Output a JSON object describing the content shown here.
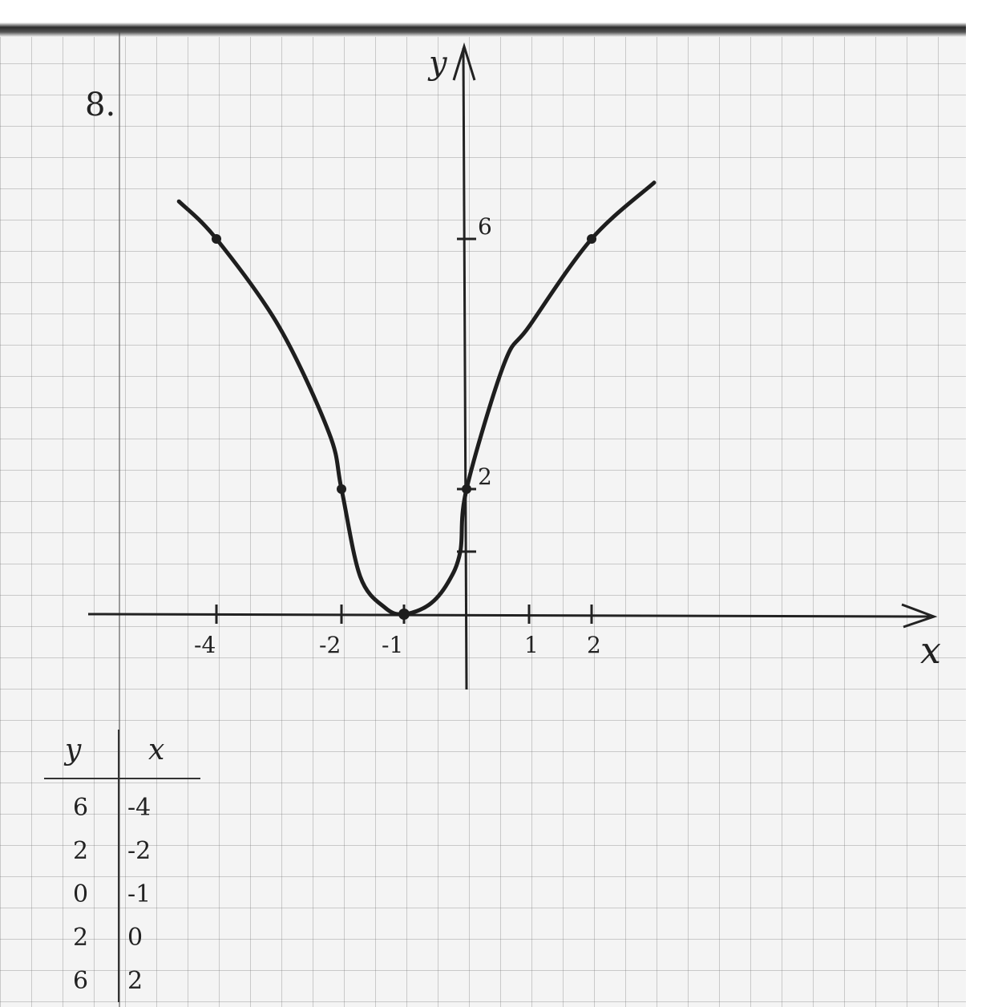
{
  "problem_number": "8.",
  "axis_labels": {
    "x": "x",
    "y": "y"
  },
  "value_table": {
    "headers": {
      "y": "y",
      "x": "x"
    },
    "rows": [
      {
        "y": "6",
        "x": "-4"
      },
      {
        "y": "2",
        "x": "-2"
      },
      {
        "y": "0",
        "x": "-1"
      },
      {
        "y": "2",
        "x": "0"
      },
      {
        "y": "6",
        "x": "2"
      }
    ]
  },
  "chart_data": {
    "type": "line",
    "title": "",
    "xlabel": "x",
    "ylabel": "y",
    "xlim": [
      -5.5,
      7.5
    ],
    "ylim": [
      -4.5,
      9
    ],
    "grid": true,
    "x_tick_labels": [
      "-4",
      "-2",
      "-1",
      "1",
      "2"
    ],
    "y_tick_labels": [
      "2",
      "6"
    ],
    "series": [
      {
        "x": [
          -4.6,
          -4,
          -3,
          -2.2,
          -2,
          -1.7,
          -1.3,
          -1,
          -0.6,
          -0.3,
          -0.1,
          0,
          0.6,
          1,
          2,
          3
        ],
        "y": [
          6.6,
          6,
          4.6,
          2.9,
          2,
          0.6,
          0.1,
          0,
          0.15,
          0.5,
          1,
          2,
          4,
          4.6,
          6,
          6.9
        ]
      }
    ],
    "points": [
      {
        "x": -4,
        "y": 6
      },
      {
        "x": -2,
        "y": 2
      },
      {
        "x": -1,
        "y": 0
      },
      {
        "x": 0,
        "y": 2
      },
      {
        "x": 2,
        "y": 6
      }
    ]
  }
}
